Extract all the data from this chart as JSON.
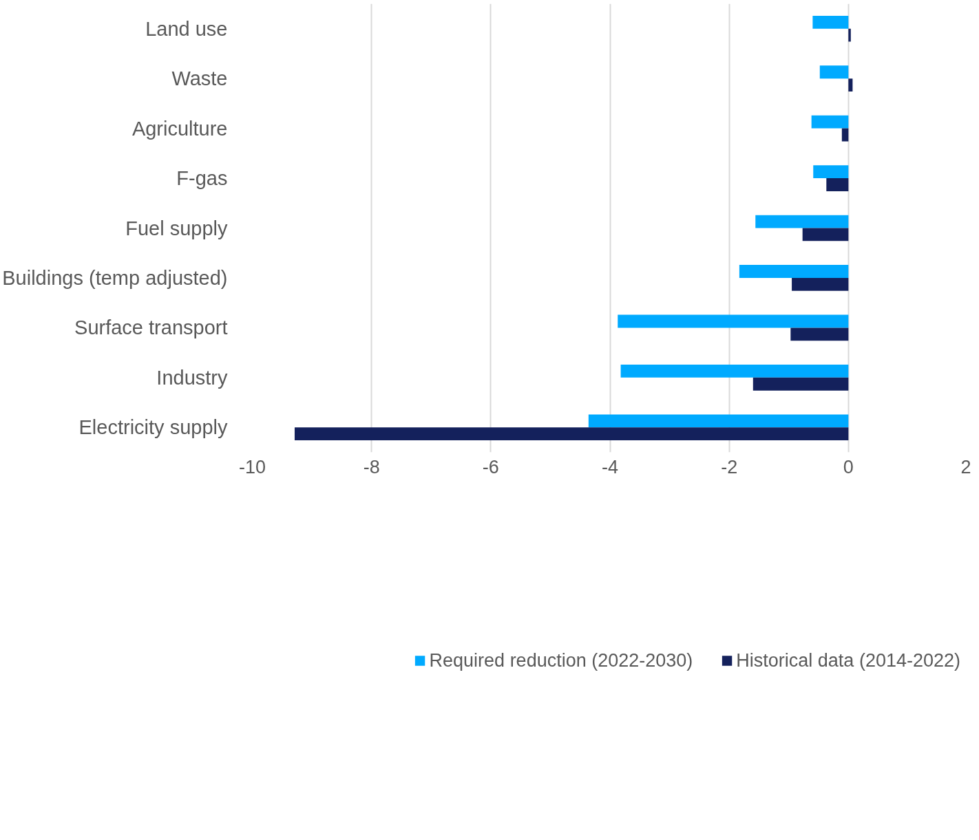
{
  "chart_data": {
    "type": "bar",
    "orientation": "horizontal",
    "categories": [
      "Land use",
      "Waste",
      "Agriculture",
      "F-gas",
      "Fuel supply",
      "Buildings (temp adjusted)",
      "Surface transport",
      "Industry",
      "Electricity supply"
    ],
    "series": [
      {
        "name": "Required reduction (2022-2030)",
        "color": "#00aaff",
        "values": [
          -0.6,
          -0.48,
          -0.62,
          -0.59,
          -1.56,
          -1.83,
          -3.87,
          -3.82,
          -4.36
        ]
      },
      {
        "name": "Historical data (2014-2022)",
        "color": "#14215c",
        "values": [
          0.04,
          0.07,
          -0.11,
          -0.37,
          -0.77,
          -0.95,
          -0.97,
          -1.6,
          -9.29
        ]
      }
    ],
    "xlim": [
      -10,
      2
    ],
    "xticks": [
      -10,
      -8,
      -6,
      -4,
      -2,
      0,
      2
    ],
    "grid": "x",
    "legend": "bottom"
  }
}
